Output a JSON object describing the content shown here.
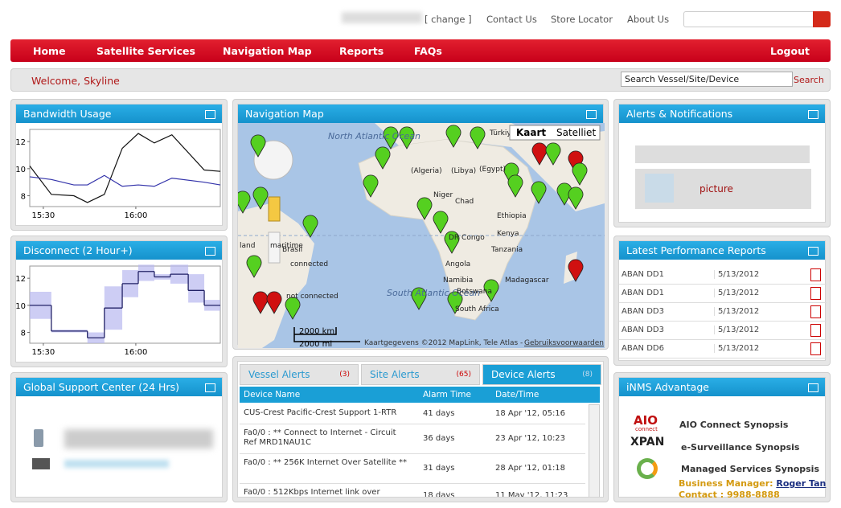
{
  "top_links": [
    "[ change ]",
    "Contact Us",
    "Store Locator",
    "About Us"
  ],
  "nav": [
    "Home",
    "Satellite Services",
    "Navigation Map",
    "Reports",
    "FAQs"
  ],
  "logout": "Logout",
  "welcome": "Welcome, Skyline",
  "search_placeholder": "Search Vessel/Site/Device",
  "search_button": "Search",
  "bandwidth": {
    "title": "Bandwidth Usage",
    "type": "line",
    "xlim": [
      -4.4,
      57.4
    ],
    "ylim": [
      7.2,
      12.9
    ],
    "yticks": [
      8,
      10,
      12
    ],
    "xticks": [
      {
        "value": 0,
        "label": "15:30"
      },
      {
        "value": 30,
        "label": "16:00"
      }
    ],
    "x": [
      -4.4,
      2.6,
      9.9,
      14.3,
      19.8,
      25.6,
      30.8,
      36.0,
      41.7,
      52.2,
      57.4
    ],
    "series": [
      {
        "color": "#111111",
        "values": [
          10.2,
          8.1,
          8.0,
          7.5,
          8.1,
          11.5,
          12.6,
          11.9,
          12.5,
          9.9,
          9.8
        ]
      },
      {
        "color": "#3333aa",
        "values": [
          9.4,
          9.2,
          8.8,
          8.8,
          9.5,
          8.7,
          8.8,
          8.7,
          9.3,
          9.0,
          8.8
        ]
      }
    ]
  },
  "disconnect": {
    "title": "Disconnect (2 Hour+)",
    "type": "step",
    "xlim": [
      -4.4,
      57.4
    ],
    "ylim": [
      7.2,
      12.9
    ],
    "yticks": [
      8,
      10,
      12
    ],
    "xticks": [
      {
        "value": 0,
        "label": "15:30"
      },
      {
        "value": 30,
        "label": "16:00"
      }
    ],
    "edges": [
      -4.4,
      2.6,
      14.3,
      19.8,
      25.6,
      30.8,
      36.0,
      41.2,
      47.0,
      52.2,
      57.4
    ],
    "values": [
      10.0,
      8.1,
      7.6,
      9.8,
      11.6,
      12.5,
      12.1,
      12.3,
      11.1,
      10.0
    ],
    "band_low": [
      9.0,
      8.0,
      7.2,
      8.2,
      10.6,
      11.8,
      11.9,
      11.6,
      10.2,
      9.6
    ],
    "band_high": [
      11.0,
      8.2,
      8.0,
      11.4,
      12.6,
      13.0,
      12.3,
      13.0,
      12.3,
      10.4
    ],
    "color": "#222266",
    "band_color": "#b8b8f0"
  },
  "support": {
    "title": "Global Support Center (24 Hrs)"
  },
  "map": {
    "title": "Navigation Map",
    "buttons": [
      "Kaart",
      "Satelliet"
    ],
    "labels": [
      "North Atlantic Ocean",
      "South Atlantic Ocean",
      "Brasil",
      "Angola",
      "Namibia",
      "Botswana",
      "South Africa",
      "Madagascar",
      "DR Congo",
      "Kenya",
      "Tanzania",
      "Ethiopia",
      "Niger",
      "Chad",
      "(Algeria)",
      "(Libya)",
      "(Egypt)",
      "Türkiye",
      "maritime",
      "land",
      "connected",
      "not connected"
    ],
    "scale": [
      "2000 km",
      "2000 mi"
    ],
    "credit": "Kaartgegevens ©2012 MapLink, Tele Atlas - ",
    "terms": "Gebruiksvoorwaarden"
  },
  "alerts": {
    "tabs": [
      {
        "name": "Vessel Alerts",
        "count": "(3)"
      },
      {
        "name": "Site Alerts",
        "count": "(65)"
      },
      {
        "name": "Device Alerts",
        "count": "(8)"
      }
    ],
    "columns": [
      "Device Name",
      "Alarm Time",
      "Date/Time"
    ],
    "rows": [
      [
        "CUS-Crest Pacific-Crest Support 1-RTR",
        "41 days",
        "18 Apr '12, 05:16"
      ],
      [
        "Fa0/0 : ** Connect to Internet - Circuit Ref MRD1NAU1C",
        "36 days",
        "23 Apr '12, 10:23"
      ],
      [
        "Fa0/0 : ** 256K Internet Over Satellite **",
        "31 days",
        "28 Apr '12, 01:18"
      ],
      [
        "Fa0/0 : 512Kbps Internet link over",
        "18 days",
        "11 May '12, 11:23"
      ]
    ]
  },
  "notifications": {
    "title": "Alerts & Notifications",
    "picture": "picture"
  },
  "reports": {
    "title": "Latest Performance Reports",
    "rows": [
      [
        "ABAN DD1",
        "5/13/2012"
      ],
      [
        "ABAN DD1",
        "5/13/2012"
      ],
      [
        "ABAN DD3",
        "5/13/2012"
      ],
      [
        "ABAN DD3",
        "5/13/2012"
      ],
      [
        "ABAN DD6",
        "5/13/2012"
      ]
    ]
  },
  "inms": {
    "title": "iNMS Advantage",
    "logos": [
      "AIO",
      "connect",
      "XPAN"
    ],
    "items": [
      "AIO Connect Synopsis",
      "e-Surveillance Synopsis",
      "Managed Services Synopsis"
    ],
    "manager_label": "Business Manager: ",
    "manager": "Roger Tan",
    "contact_label": "Contact : ",
    "contact": "9988-8888"
  }
}
